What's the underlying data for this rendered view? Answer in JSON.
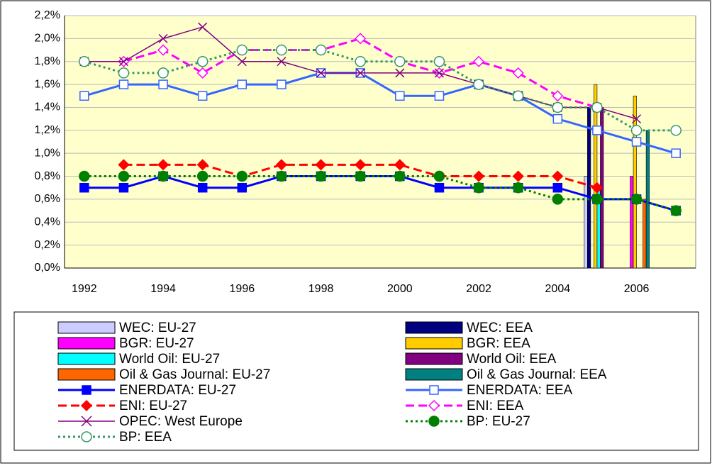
{
  "chart_data": {
    "type": "bar",
    "categories": [
      "1992",
      null,
      "1994",
      null,
      "1996",
      null,
      "1998",
      null,
      "2000",
      null,
      "2002",
      null,
      "2004",
      null,
      "2006",
      null
    ],
    "ylim": [
      0,
      2.2
    ],
    "yticks": [
      {
        "value": 0,
        "label": "0,0%"
      },
      {
        "value": 0.2,
        "label": "0,2%"
      },
      {
        "value": 0.4,
        "label": "0,4%"
      },
      {
        "value": 0.6,
        "label": "0,6%"
      },
      {
        "value": 0.8,
        "label": "0,8%"
      },
      {
        "value": 1.0,
        "label": "1,0%"
      },
      {
        "value": 1.2,
        "label": "1,2%"
      },
      {
        "value": 1.4,
        "label": "1,4%"
      },
      {
        "value": 1.6,
        "label": "1,6%"
      },
      {
        "value": 1.8,
        "label": "1,8%"
      },
      {
        "value": 2.0,
        "label": "2,0%"
      },
      {
        "value": 2.2,
        "label": "2,2%"
      }
    ],
    "grid": true,
    "series": [
      {
        "name": "WEC: EU-27",
        "color": "#ccccff",
        "type": "bar",
        "values": [
          null,
          null,
          null,
          null,
          null,
          null,
          null,
          null,
          null,
          null,
          null,
          null,
          null,
          0.8,
          null,
          null
        ]
      },
      {
        "name": "WEC: EEA",
        "color": "#000080",
        "type": "bar",
        "values": [
          null,
          null,
          null,
          null,
          null,
          null,
          null,
          null,
          null,
          null,
          null,
          null,
          null,
          1.4,
          null,
          null
        ]
      },
      {
        "name": "BGR: EU-27",
        "color": "#ff00ff",
        "type": "bar",
        "values": [
          null,
          null,
          null,
          null,
          null,
          null,
          null,
          null,
          null,
          null,
          null,
          null,
          null,
          null,
          0.8,
          null
        ]
      },
      {
        "name": "BGR: EEA",
        "color": "#ffcc00",
        "type": "bar",
        "values": [
          null,
          null,
          null,
          null,
          null,
          null,
          null,
          null,
          null,
          null,
          null,
          null,
          null,
          1.6,
          1.5,
          null
        ]
      },
      {
        "name": "World Oil: EU-27",
        "color": "#00ffff",
        "type": "bar",
        "values": [
          null,
          null,
          null,
          null,
          null,
          null,
          null,
          null,
          null,
          null,
          null,
          null,
          null,
          0.7,
          null,
          null
        ]
      },
      {
        "name": "World Oil: EEA",
        "color": "#800080",
        "type": "bar",
        "values": [
          null,
          null,
          null,
          null,
          null,
          null,
          null,
          null,
          null,
          null,
          null,
          null,
          null,
          1.4,
          null,
          null
        ]
      },
      {
        "name": "Oil & Gas Journal: EU-27",
        "color": "#ff6600",
        "type": "bar",
        "values": [
          null,
          null,
          null,
          null,
          null,
          null,
          null,
          null,
          null,
          null,
          null,
          null,
          null,
          null,
          0.6,
          null
        ]
      },
      {
        "name": "Oil & Gas Journal: EEA",
        "color": "#008080",
        "type": "bar",
        "values": [
          null,
          null,
          null,
          null,
          null,
          null,
          null,
          null,
          null,
          null,
          null,
          null,
          null,
          null,
          1.2,
          null
        ]
      },
      {
        "name": "ENERDATA: EU-27",
        "color": "#0000ff",
        "type": "line",
        "marker": "square",
        "marker_fill": true,
        "dash": "solid",
        "values": [
          0.7,
          0.7,
          0.8,
          0.7,
          0.7,
          0.8,
          0.8,
          0.8,
          0.8,
          0.7,
          0.7,
          0.7,
          0.7,
          0.6,
          0.6,
          0.5
        ]
      },
      {
        "name": "ENERDATA: EEA",
        "color": "#3366ff",
        "type": "line",
        "marker": "square",
        "marker_fill": false,
        "dash": "solid",
        "values": [
          1.5,
          1.6,
          1.6,
          1.5,
          1.6,
          1.6,
          1.7,
          1.7,
          1.5,
          1.5,
          1.6,
          1.5,
          1.3,
          1.2,
          1.1,
          1.0
        ]
      },
      {
        "name": "ENI: EU-27",
        "color": "#ff0000",
        "type": "line",
        "marker": "diamond",
        "marker_fill": true,
        "dash": "dash",
        "values": [
          null,
          0.9,
          0.9,
          0.9,
          0.8,
          0.9,
          0.9,
          0.9,
          0.9,
          0.8,
          0.8,
          0.8,
          0.8,
          0.7,
          null,
          null
        ]
      },
      {
        "name": "ENI: EEA",
        "color": "#ff00ff",
        "type": "line",
        "marker": "diamond",
        "marker_fill": false,
        "dash": "dash",
        "values": [
          null,
          1.8,
          1.9,
          1.7,
          1.9,
          1.9,
          1.9,
          2.0,
          1.8,
          1.7,
          1.8,
          1.7,
          1.5,
          1.4,
          null,
          null
        ]
      },
      {
        "name": "OPEC: West Europe",
        "color": "#800080",
        "type": "line",
        "marker": "x",
        "marker_fill": false,
        "dash": "solid",
        "values": [
          1.8,
          1.8,
          2.0,
          2.1,
          1.8,
          1.8,
          1.7,
          1.7,
          1.7,
          1.7,
          1.6,
          1.5,
          1.4,
          1.4,
          1.3,
          null
        ]
      },
      {
        "name": "BP: EU-27",
        "color": "#008000",
        "type": "line",
        "marker": "circle",
        "marker_fill": true,
        "dash": "dot",
        "values": [
          0.8,
          0.8,
          0.8,
          0.8,
          0.8,
          0.8,
          0.8,
          0.8,
          0.8,
          0.8,
          0.7,
          0.7,
          0.6,
          0.6,
          0.6,
          0.5
        ]
      },
      {
        "name": "BP: EEA",
        "color": "#339966",
        "type": "line",
        "marker": "circle",
        "marker_fill": false,
        "dash": "dot",
        "values": [
          1.8,
          1.7,
          1.7,
          1.8,
          1.9,
          1.9,
          1.9,
          1.8,
          1.8,
          1.8,
          1.6,
          1.5,
          1.4,
          1.4,
          1.2,
          1.2
        ]
      }
    ]
  }
}
